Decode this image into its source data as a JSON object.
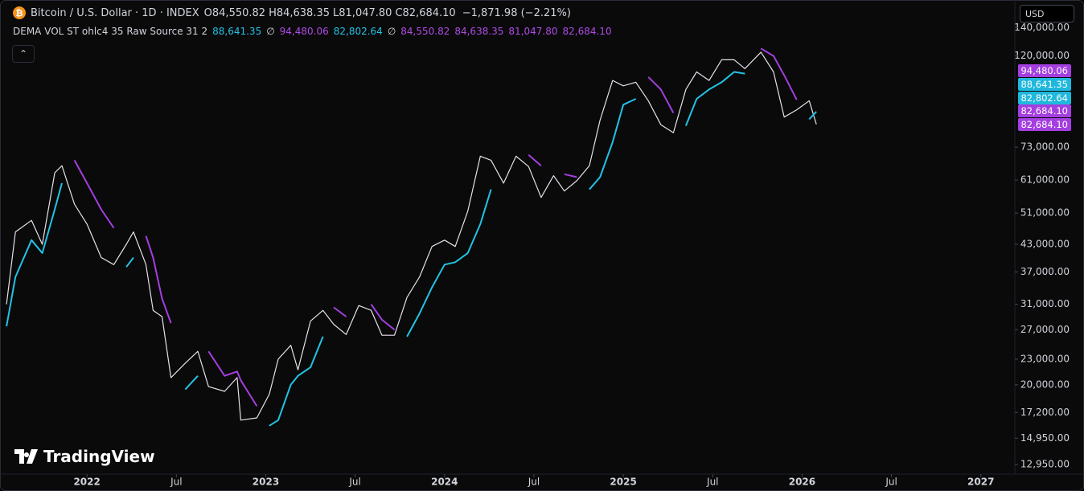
{
  "header": {
    "symbol": "Bitcoin / U.S. Dollar · 1D · INDEX",
    "ohlc": [
      {
        "key": "O",
        "value": "84,550.82"
      },
      {
        "key": "H",
        "value": "84,638.35"
      },
      {
        "key": "L",
        "value": "81,047.80"
      },
      {
        "key": "C",
        "value": "82,684.10"
      }
    ],
    "change": "−1,871.98 (−2.21%)",
    "indicator": "DEMA VOL ST ohlc4 35 Raw Source 31 2",
    "indicator_values": [
      {
        "text": "88,641.35",
        "color": "#22c3e6"
      },
      {
        "text": "∅",
        "color": "#d1d4dc"
      },
      {
        "text": "94,480.06",
        "color": "#b04ae8"
      },
      {
        "text": "82,802.64",
        "color": "#22c3e6"
      },
      {
        "text": "∅",
        "color": "#d1d4dc"
      },
      {
        "text": "84,550.82",
        "color": "#b04ae8"
      },
      {
        "text": "84,638.35",
        "color": "#b04ae8"
      },
      {
        "text": "81,047.80",
        "color": "#b04ae8"
      },
      {
        "text": "82,684.10",
        "color": "#b04ae8"
      }
    ],
    "currency": "USD",
    "brand": "TradingView"
  },
  "price_badges": [
    {
      "label": "94,480.06",
      "color": "#a43ee0"
    },
    {
      "label": "88,641.35",
      "color": "#1fb8dc"
    },
    {
      "label": "82,802.64",
      "color": "#1fb8dc"
    },
    {
      "label": "82,684.10",
      "color": "#a43ee0"
    },
    {
      "label": "82,684.10",
      "color": "#a43ee0"
    }
  ],
  "chart_data": {
    "type": "line",
    "log_y": true,
    "grid": false,
    "x": [
      2021.55,
      2021.6,
      2021.69,
      2021.75,
      2021.82,
      2021.86,
      2021.93,
      2022.0,
      2022.08,
      2022.15,
      2022.22,
      2022.26,
      2022.33,
      2022.37,
      2022.42,
      2022.47,
      2022.55,
      2022.62,
      2022.68,
      2022.77,
      2022.84,
      2022.86,
      2022.95,
      2023.02,
      2023.07,
      2023.14,
      2023.18,
      2023.25,
      2023.32,
      2023.38,
      2023.45,
      2023.52,
      2023.59,
      2023.65,
      2023.72,
      2023.79,
      2023.86,
      2023.93,
      2024.0,
      2024.06,
      2024.13,
      2024.2,
      2024.26,
      2024.33,
      2024.4,
      2024.47,
      2024.54,
      2024.61,
      2024.67,
      2024.74,
      2024.81,
      2024.87,
      2024.94,
      2025.0,
      2025.07,
      2025.14,
      2025.21,
      2025.28,
      2025.35,
      2025.41,
      2025.48,
      2025.55,
      2025.62,
      2025.68,
      2025.77,
      2025.84,
      2025.9,
      2025.97,
      2026.04,
      2026.08
    ],
    "series": [
      {
        "color": "#e6e1ea",
        "values": [
          31000,
          46000,
          49000,
          43000,
          63500,
          66000,
          53500,
          48000,
          40000,
          38500,
          43000,
          46000,
          38500,
          30000,
          29000,
          20800,
          22500,
          24000,
          19800,
          19300,
          20800,
          16500,
          16700,
          19000,
          23000,
          24800,
          21700,
          28300,
          30000,
          27800,
          26300,
          30800,
          30000,
          26200,
          26200,
          32200,
          36000,
          42500,
          44000,
          42500,
          51500,
          69500,
          68000,
          60000,
          69500,
          65700,
          55500,
          62500,
          57500,
          60800,
          66000,
          84600,
          105000,
          102000,
          104000,
          94000,
          82500,
          79000,
          100000,
          110000,
          105000,
          117500,
          117500,
          112000,
          122500,
          110000,
          86000,
          89500,
          94000,
          82700
        ]
      },
      {
        "color": "#a43ee0",
        "values": [
          null,
          null,
          null,
          null,
          null,
          null,
          68000,
          60000,
          52000,
          47000,
          null,
          null,
          45000,
          40000,
          32000,
          28000,
          null,
          null,
          24000,
          21000,
          21500,
          20500,
          17800,
          null,
          null,
          null,
          null,
          null,
          null,
          30500,
          29000,
          null,
          31000,
          28500,
          27000,
          null,
          null,
          null,
          null,
          null,
          null,
          null,
          null,
          72000,
          null,
          70000,
          66000,
          null,
          63000,
          62000,
          null,
          null,
          null,
          null,
          null,
          107000,
          100000,
          88000,
          null,
          null,
          null,
          null,
          null,
          null,
          125000,
          120000,
          108000,
          94500,
          null,
          null
        ]
      },
      {
        "color": "#22c3e6",
        "values": [
          27500,
          36000,
          44000,
          41000,
          52000,
          60000,
          null,
          null,
          null,
          null,
          38000,
          40000,
          null,
          null,
          null,
          null,
          19500,
          21000,
          null,
          null,
          null,
          null,
          null,
          16000,
          16500,
          20000,
          21000,
          22000,
          26000,
          null,
          null,
          27000,
          null,
          null,
          null,
          26000,
          29500,
          34000,
          38500,
          39000,
          41000,
          48000,
          58000,
          null,
          59000,
          null,
          null,
          54000,
          null,
          null,
          58000,
          62000,
          75000,
          92000,
          95000,
          null,
          null,
          null,
          82000,
          95000,
          100000,
          104000,
          110000,
          109000,
          null,
          null,
          null,
          null,
          85000,
          88600
        ]
      }
    ],
    "xlim": [
      2021.545,
      2027.19
    ],
    "xticks": [
      2022,
      {
        "value": 2022.5,
        "label": "Jul"
      },
      2023,
      {
        "value": 2023.5,
        "label": "Jul"
      },
      2024,
      {
        "value": 2024.5,
        "label": "Jul"
      },
      2025,
      {
        "value": 2025.5,
        "label": "Jul"
      },
      2026,
      {
        "value": 2026.5,
        "label": "Jul"
      },
      2027
    ],
    "ylim": [
      12400,
      144000
    ],
    "yticks": [
      {
        "value": 140000,
        "label": "140,000.00"
      },
      {
        "value": 120000,
        "label": "120,000.00"
      },
      {
        "value": 73000,
        "label": "73,000.00"
      },
      {
        "value": 61000,
        "label": "61,000.00"
      },
      {
        "value": 51000,
        "label": "51,000.00"
      },
      {
        "value": 43000,
        "label": "43,000.00"
      },
      {
        "value": 37000,
        "label": "37,000.00"
      },
      {
        "value": 31000,
        "label": "31,000.00"
      },
      {
        "value": 27000,
        "label": "27,000.00"
      },
      {
        "value": 23000,
        "label": "23,000.00"
      },
      {
        "value": 20000,
        "label": "20,000.00"
      },
      {
        "value": 17200,
        "label": "17,200.00"
      },
      {
        "value": 14950,
        "label": "14,950.00"
      },
      {
        "value": 12950,
        "label": "12,950.00"
      }
    ]
  }
}
